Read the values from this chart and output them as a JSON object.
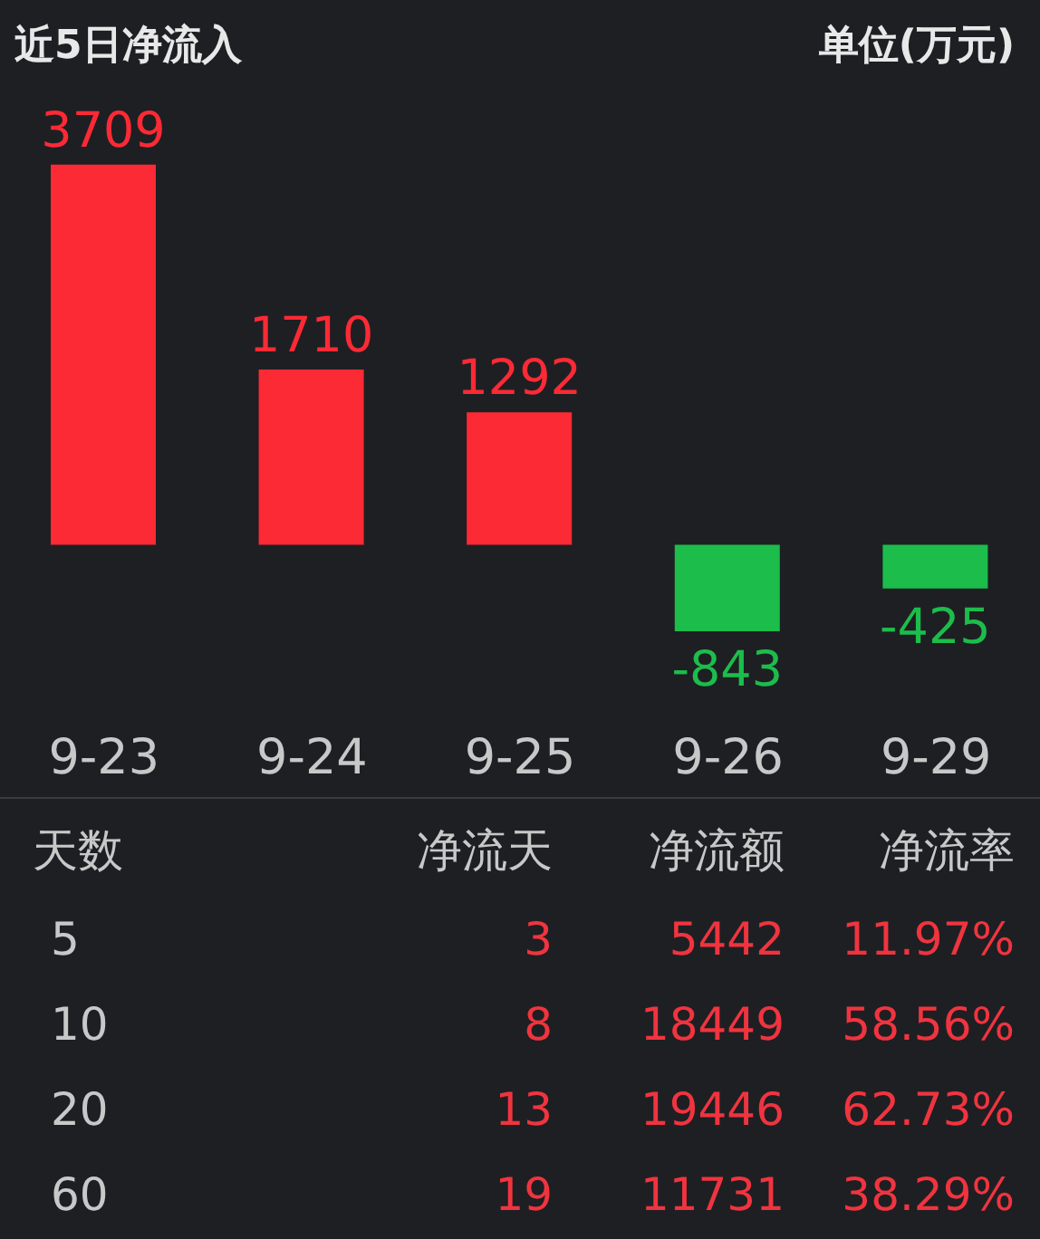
{
  "chart_data": [
    {
      "type": "bar",
      "title": "近5日净流入",
      "subtitle": "单位(万元)",
      "categories": [
        "9-23",
        "9-24",
        "9-25",
        "9-26",
        "9-29"
      ],
      "values": [
        3709,
        1710,
        1292,
        -843,
        -425
      ],
      "colors": [
        "#fc2a35",
        "#fc2a35",
        "#fc2a35",
        "#1cbd4b",
        "#1cbd4b"
      ],
      "data_labels": true
    },
    {
      "type": "other",
      "xlabel": "天数",
      "categories": [
        "5",
        "10",
        "20",
        "60"
      ],
      "data_labels": true,
      "series": [
        {
          "name": "净流天",
          "values": [
            3,
            8,
            13,
            19
          ]
        },
        {
          "name": "净流额",
          "values": [
            5442,
            18449,
            19446,
            11731
          ]
        },
        {
          "name": "净流率",
          "values": [
            11.97,
            58.56,
            62.73,
            38.29
          ],
          "value_labels": [
            "11.97%",
            "58.56%",
            "62.73%",
            "38.29%"
          ]
        }
      ]
    }
  ]
}
